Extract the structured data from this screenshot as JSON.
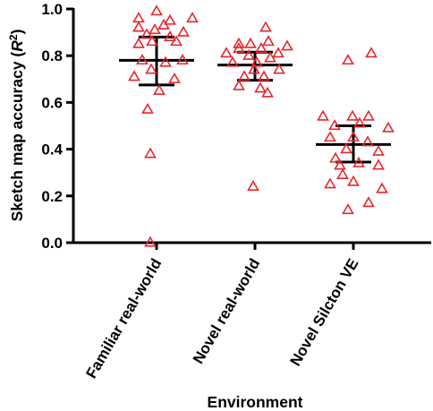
{
  "chart_data": {
    "type": "scatter",
    "xlabel": "Environment",
    "ylabel_text": "Sketch map accuracy (",
    "ylabel_italic": "R",
    "ylabel_sup": "2",
    "ylabel_close": ")",
    "ylim": [
      0,
      1
    ],
    "yticks": [
      {
        "value": 0,
        "label": "0.0"
      },
      {
        "value": 0.2,
        "label": "0.2"
      },
      {
        "value": 0.4,
        "label": "0.4"
      },
      {
        "value": 0.6,
        "label": "0.6"
      },
      {
        "value": 0.8,
        "label": "0.8"
      },
      {
        "value": 1.0,
        "label": "1.0"
      }
    ],
    "categories": [
      "Familiar real-world",
      "Novel real-world",
      "Novel Silcton VE"
    ],
    "marker": "open-triangle",
    "marker_color": "#e8262d",
    "grid": false,
    "groups": [
      {
        "category": "Familiar real-world",
        "mean": 0.78,
        "ci_upper": 0.88,
        "ci_lower": 0.675,
        "points": [
          {
            "x": 0.0,
            "y": 0.99
          },
          {
            "x": -0.2,
            "y": 0.96
          },
          {
            "x": 0.4,
            "y": 0.96
          },
          {
            "x": 0.15,
            "y": 0.95
          },
          {
            "x": 0.08,
            "y": 0.93
          },
          {
            "x": -0.2,
            "y": 0.92
          },
          {
            "x": -0.02,
            "y": 0.91
          },
          {
            "x": 0.3,
            "y": 0.9
          },
          {
            "x": -0.11,
            "y": 0.89
          },
          {
            "x": 0.15,
            "y": 0.88
          },
          {
            "x": -0.05,
            "y": 0.86
          },
          {
            "x": 0.22,
            "y": 0.86
          },
          {
            "x": -0.2,
            "y": 0.85
          },
          {
            "x": -0.16,
            "y": 0.78
          },
          {
            "x": 0.29,
            "y": 0.78
          },
          {
            "x": 0.1,
            "y": 0.77
          },
          {
            "x": -0.06,
            "y": 0.74
          },
          {
            "x": -0.25,
            "y": 0.71
          },
          {
            "x": 0.2,
            "y": 0.7
          },
          {
            "x": 0.03,
            "y": 0.65
          },
          {
            "x": -0.1,
            "y": 0.57
          },
          {
            "x": -0.07,
            "y": 0.38
          },
          {
            "x": -0.07,
            "y": 0.0
          }
        ]
      },
      {
        "category": "Novel real-world",
        "mean": 0.76,
        "ci_upper": 0.815,
        "ci_lower": 0.695,
        "points": [
          {
            "x": 0.12,
            "y": 0.92
          },
          {
            "x": -0.18,
            "y": 0.85
          },
          {
            "x": -0.32,
            "y": 0.81
          },
          {
            "x": 0.15,
            "y": 0.86
          },
          {
            "x": -0.05,
            "y": 0.85
          },
          {
            "x": 0.36,
            "y": 0.84
          },
          {
            "x": -0.18,
            "y": 0.83
          },
          {
            "x": 0.07,
            "y": 0.83
          },
          {
            "x": 0.26,
            "y": 0.81
          },
          {
            "x": -0.07,
            "y": 0.8
          },
          {
            "x": 0.17,
            "y": 0.79
          },
          {
            "x": -0.25,
            "y": 0.77
          },
          {
            "x": 0.02,
            "y": 0.77
          },
          {
            "x": -0.01,
            "y": 0.74
          },
          {
            "x": 0.27,
            "y": 0.74
          },
          {
            "x": -0.12,
            "y": 0.71
          },
          {
            "x": 0.1,
            "y": 0.71
          },
          {
            "x": -0.18,
            "y": 0.67
          },
          {
            "x": 0.06,
            "y": 0.66
          },
          {
            "x": 0.14,
            "y": 0.64
          },
          {
            "x": -0.02,
            "y": 0.24
          }
        ]
      },
      {
        "category": "Novel Silcton VE",
        "mean": 0.42,
        "ci_upper": 0.5,
        "ci_lower": 0.345,
        "points": [
          {
            "x": -0.06,
            "y": 0.78
          },
          {
            "x": 0.2,
            "y": 0.81
          },
          {
            "x": -0.34,
            "y": 0.54
          },
          {
            "x": 0.17,
            "y": 0.54
          },
          {
            "x": -0.01,
            "y": 0.54
          },
          {
            "x": -0.21,
            "y": 0.5
          },
          {
            "x": 0.07,
            "y": 0.51
          },
          {
            "x": 0.39,
            "y": 0.49
          },
          {
            "x": -0.26,
            "y": 0.45
          },
          {
            "x": 0.0,
            "y": 0.45
          },
          {
            "x": 0.16,
            "y": 0.43
          },
          {
            "x": -0.08,
            "y": 0.4
          },
          {
            "x": 0.28,
            "y": 0.39
          },
          {
            "x": -0.2,
            "y": 0.36
          },
          {
            "x": 0.06,
            "y": 0.34
          },
          {
            "x": -0.15,
            "y": 0.33
          },
          {
            "x": 0.28,
            "y": 0.33
          },
          {
            "x": -0.26,
            "y": 0.25
          },
          {
            "x": 0.0,
            "y": 0.26
          },
          {
            "x": -0.12,
            "y": 0.29
          },
          {
            "x": 0.32,
            "y": 0.23
          },
          {
            "x": 0.17,
            "y": 0.17
          },
          {
            "x": -0.06,
            "y": 0.14
          }
        ]
      }
    ]
  }
}
